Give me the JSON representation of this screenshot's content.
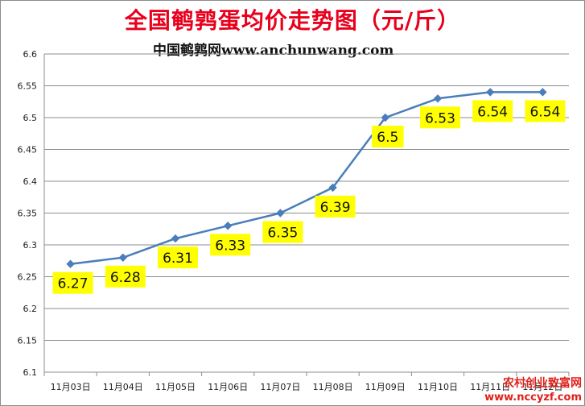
{
  "title": "全国鹌鹑蛋均价走势图（元/斤）",
  "subtitle": "中国鹌鹑网www.anchunwang.com",
  "watermark": {
    "line1": "农村创业致富网",
    "line2": "www.nccyzf.com"
  },
  "colors": {
    "title": "#e8001c",
    "line": "#4a7ebb",
    "label_bg": "#ffff00"
  },
  "chart_data": {
    "type": "line",
    "categories": [
      "11月03日",
      "11月04日",
      "11月05日",
      "11月06日",
      "11月07日",
      "11月08日",
      "11月09日",
      "11月10日",
      "11月11日",
      "11月12日"
    ],
    "series": [
      {
        "values": [
          6.27,
          6.28,
          6.31,
          6.33,
          6.35,
          6.39,
          6.5,
          6.53,
          6.54,
          6.54
        ]
      }
    ],
    "data_labels": [
      "6.27",
      "6.28",
      "6.31",
      "6.33",
      "6.35",
      "6.39",
      "6.5",
      "6.53",
      "6.54",
      "6.54"
    ],
    "ylim": [
      6.1,
      6.6
    ],
    "yticks": [
      "6.1",
      "6.15",
      "6.2",
      "6.25",
      "6.3",
      "6.35",
      "6.4",
      "6.45",
      "6.5",
      "6.55",
      "6.6"
    ],
    "grid": true,
    "marker": "diamond"
  }
}
